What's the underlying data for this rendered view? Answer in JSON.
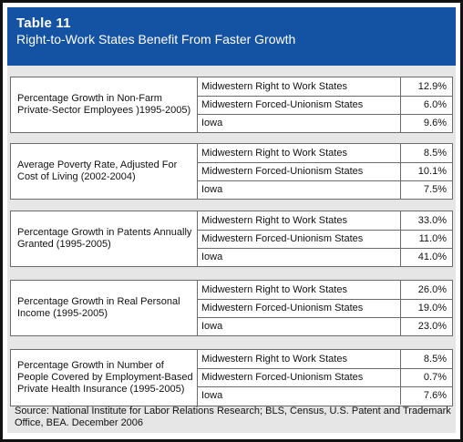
{
  "header": {
    "table_number": "Table 11",
    "title": "Right-to-Work States Benefit From Faster Growth"
  },
  "groups": [
    {
      "metric": "Percentage Growth in Non-Farm Private-Sector Employees )1995-2005)",
      "rows": [
        {
          "label": "Midwestern Right to Work States",
          "value": "12.9%"
        },
        {
          "label": "Midwestern Forced-Unionism States",
          "value": "6.0%"
        },
        {
          "label": "Iowa",
          "value": "9.6%"
        }
      ]
    },
    {
      "metric": "Average Poverty Rate, Adjusted For Cost of Living (2002-2004)",
      "rows": [
        {
          "label": "Midwestern Right to Work States",
          "value": "8.5%"
        },
        {
          "label": "Midwestern Forced-Unionism States",
          "value": "10.1%"
        },
        {
          "label": "Iowa",
          "value": "7.5%"
        }
      ]
    },
    {
      "metric": "Percentage Growth in Patents Annually Granted (1995-2005)",
      "rows": [
        {
          "label": "Midwestern Right to Work States",
          "value": "33.0%"
        },
        {
          "label": "Midwestern Forced-Unionism States",
          "value": "11.0%"
        },
        {
          "label": "Iowa",
          "value": "41.0%"
        }
      ]
    },
    {
      "metric": "Percentage Growth in Real Personal Income (1995-2005)",
      "rows": [
        {
          "label": "Midwestern Right to Work States",
          "value": "26.0%"
        },
        {
          "label": "Midwestern Forced-Unionism States",
          "value": "19.0%"
        },
        {
          "label": "Iowa",
          "value": "23.0%"
        }
      ]
    },
    {
      "metric": "Percentage Growth in Number of People Covered by Employment-Based Private Health Insurance (1995-2005)",
      "rows": [
        {
          "label": "Midwestern Right to Work States",
          "value": "8.5%"
        },
        {
          "label": "Midwestern Forced-Unionism States",
          "value": "0.7%"
        },
        {
          "label": "Iowa",
          "value": "7.6%"
        }
      ]
    }
  ],
  "source": "Source: National Institute for Labor Relations Research; BLS, Census, U.S. Patent and Trademark Office, BEA. December 2006",
  "colors": {
    "header_bg": "#1452a3",
    "header_text": "#ffffff",
    "panel_bg": "#e6e6e6",
    "border": "#6b6b6b"
  }
}
